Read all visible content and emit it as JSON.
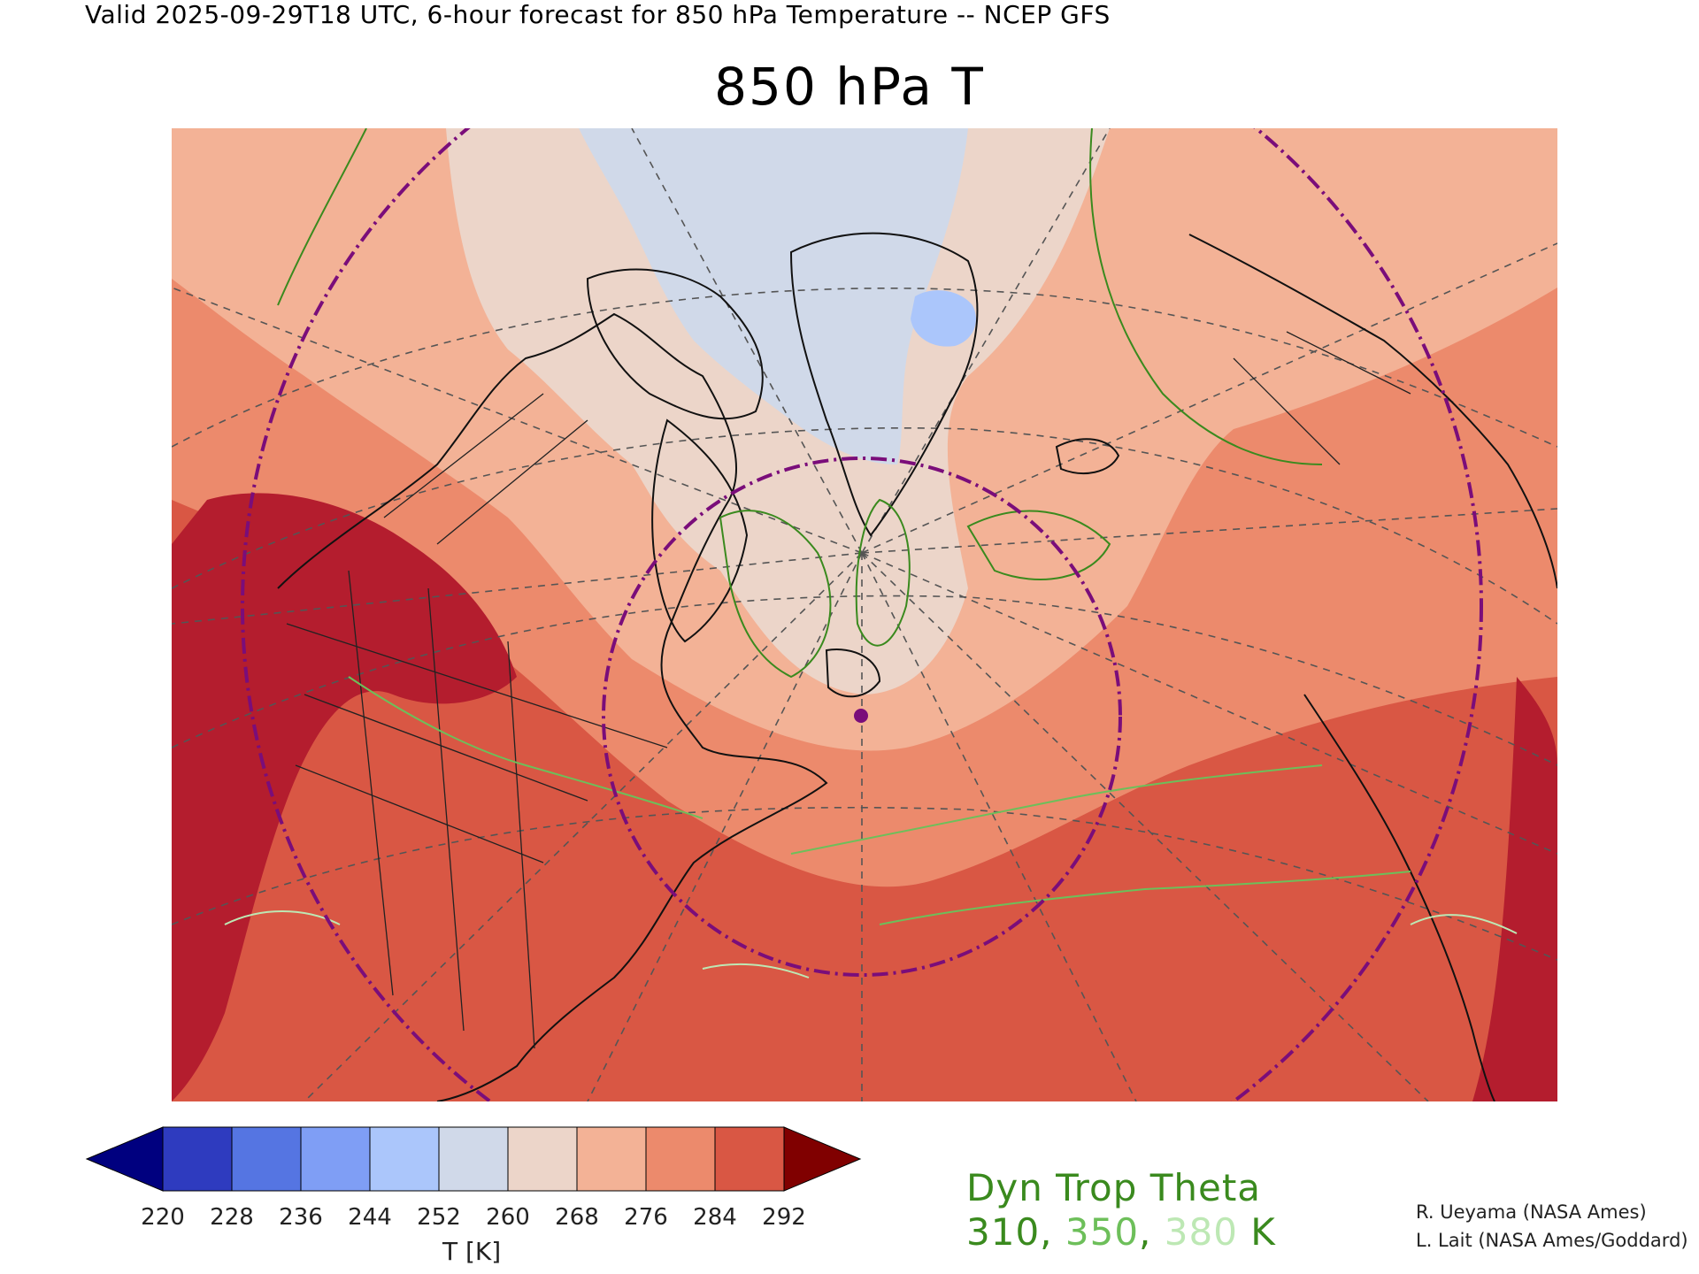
{
  "header": {
    "valid_line": "Valid 2025-09-29T18 UTC, 6-hour forecast for 850 hPa Temperature -- NCEP GFS"
  },
  "map": {
    "title": "850 hPa T",
    "projection": "polar-stereographic",
    "field": "850 hPa Temperature",
    "region": "North America / North Atlantic / Arctic",
    "marker_icon": "location-dot-icon",
    "marker_color": "#7a0d7a",
    "contour_colors": {
      "310": "#3a8a1e",
      "350": "#6dbf5a",
      "380": "#bde8b4"
    },
    "ring_color": "#7a0d7a"
  },
  "colorbar": {
    "units": "T [K]",
    "ticks": [
      "220",
      "228",
      "236",
      "244",
      "252",
      "260",
      "268",
      "276",
      "284",
      "292"
    ],
    "underflow_color": "#00007f",
    "overflow_color": "#800000",
    "colors": [
      "#2e3bbf",
      "#5575e2",
      "#7f9ef5",
      "#abc6fb",
      "#d0d9e9",
      "#ecd5c9",
      "#f3b296",
      "#ec8a6c",
      "#d95744"
    ]
  },
  "legend": {
    "title": "Dyn Trop Theta",
    "values": [
      {
        "text": "310",
        "color": "#3a8a1e"
      },
      {
        "text": ", ",
        "color": "#3a8a1e"
      },
      {
        "text": "350",
        "color": "#6dbf5a"
      },
      {
        "text": ", ",
        "color": "#3a8a1e"
      },
      {
        "text": "380",
        "color": "#bde8b4"
      },
      {
        "text": " K",
        "color": "#3a8a1e"
      }
    ]
  },
  "credits": {
    "line1": "R. Ueyama (NASA Ames)",
    "line2": "L. Lait (NASA Ames/Goddard)"
  }
}
